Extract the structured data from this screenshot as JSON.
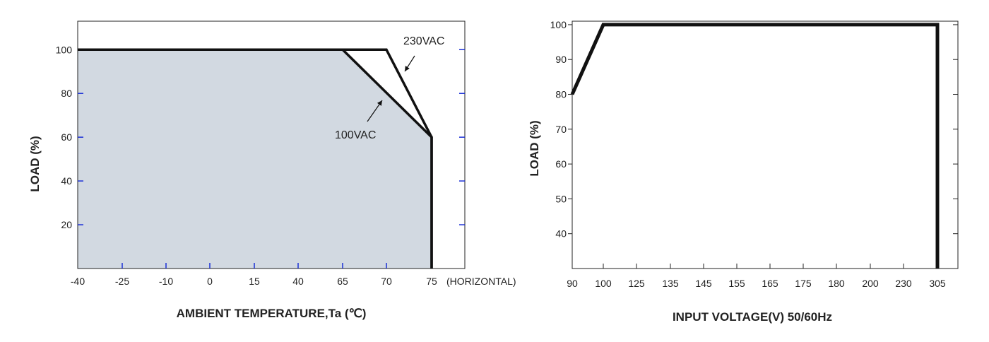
{
  "chart_data": [
    {
      "type": "area",
      "title": "",
      "xlabel": "AMBIENT TEMPERATURE,Ta (℃)",
      "ylabel": "LOAD (%)",
      "x_categories": [
        "-40",
        "-25",
        "-10",
        "0",
        "15",
        "40",
        "65",
        "70",
        "75"
      ],
      "x_suffix": "(HORIZONTAL)",
      "y_ticks": [
        20,
        40,
        60,
        80,
        100
      ],
      "ylim": [
        0,
        113
      ],
      "grid": false,
      "series": [
        {
          "name": "230VAC",
          "points": [
            [
              "-40",
              100
            ],
            [
              "70",
              100
            ],
            [
              "75",
              60
            ],
            [
              "75",
              0
            ]
          ]
        },
        {
          "name": "100VAC",
          "points": [
            [
              "-40",
              100
            ],
            [
              "65",
              100
            ],
            [
              "75",
              60
            ],
            [
              "75",
              0
            ]
          ]
        }
      ],
      "annotations": [
        {
          "text": "230VAC",
          "points_to": [
            "70",
            100
          ],
          "position": "top-right"
        },
        {
          "text": "100VAC",
          "points_to": [
            "65",
            90
          ],
          "position": "right"
        }
      ],
      "fill_color": "#d2d9e1",
      "line_color": "#111111",
      "tick_color": "#1a2fd6"
    },
    {
      "type": "line",
      "title": "",
      "xlabel": "INPUT VOLTAGE(V) 50/60Hz",
      "ylabel": "LOAD (%)",
      "x_categories": [
        "90",
        "100",
        "125",
        "135",
        "145",
        "155",
        "165",
        "175",
        "180",
        "200",
        "230",
        "305"
      ],
      "y_ticks": [
        40,
        50,
        60,
        70,
        80,
        90,
        100
      ],
      "ylim": [
        30,
        101
      ],
      "grid": false,
      "series": [
        {
          "points": [
            [
              "90",
              80
            ],
            [
              "100",
              100
            ],
            [
              "305",
              100
            ],
            [
              "305",
              30
            ]
          ]
        }
      ],
      "line_color": "#111111"
    }
  ]
}
